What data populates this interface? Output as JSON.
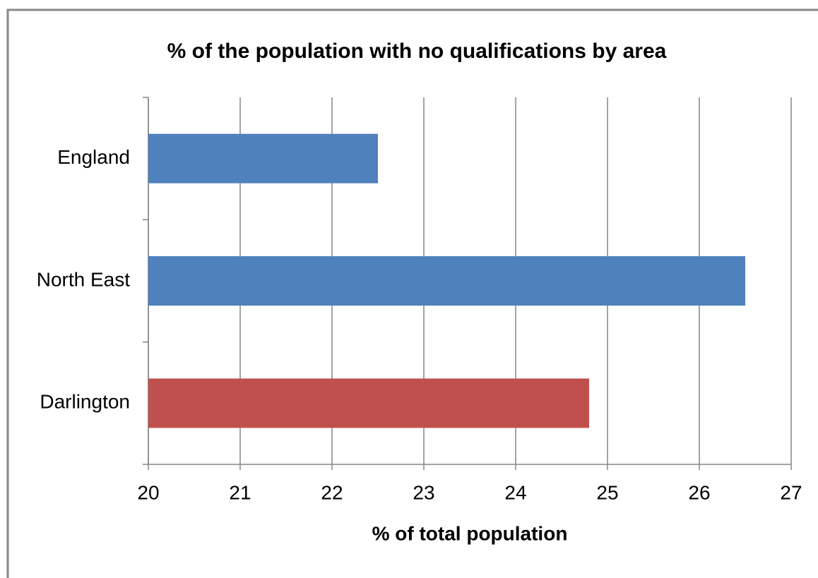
{
  "chart_data": {
    "type": "bar",
    "orientation": "horizontal",
    "title": "% of the population with no qualifications by area",
    "x_label": "% of total population",
    "categories": [
      "England",
      "North East",
      "Darlington"
    ],
    "values": [
      22.5,
      26.5,
      24.8
    ],
    "colors": [
      "#4f81bd",
      "#4f81bd",
      "#c0504d"
    ],
    "xlim": [
      20,
      27
    ],
    "xticks": [
      20,
      21,
      22,
      23,
      24,
      25,
      26,
      27
    ],
    "grid": true
  }
}
